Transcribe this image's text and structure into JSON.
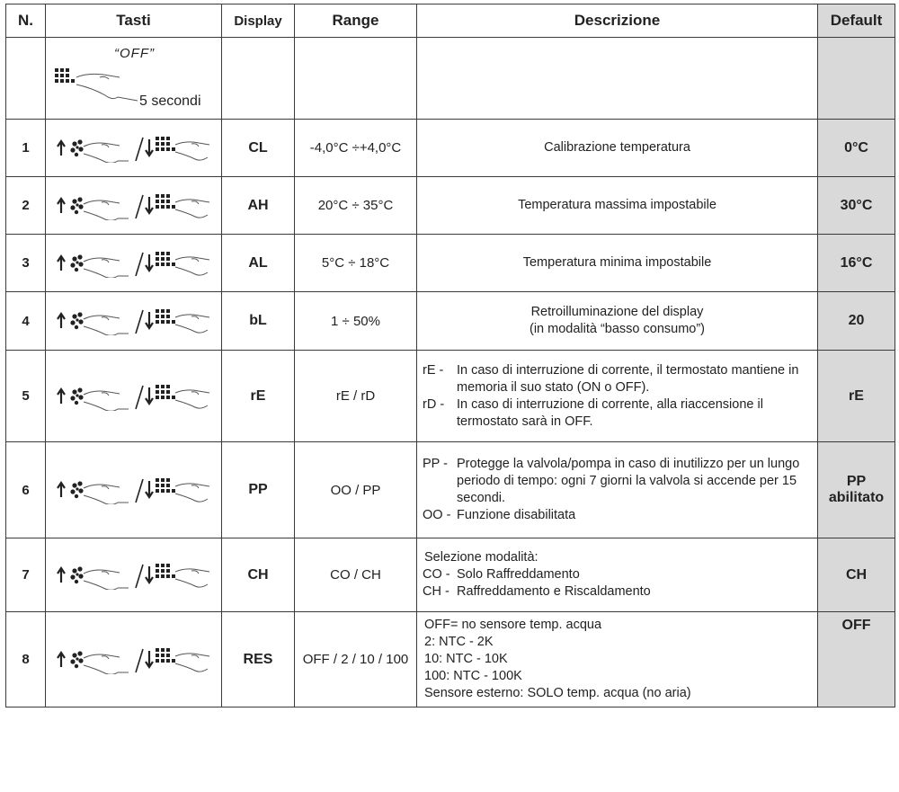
{
  "columns": [
    "N.",
    "Tasti",
    "Display",
    "Range",
    "Descrizione",
    "Default"
  ],
  "row0": {
    "label": "“OFF”",
    "time": "5 secondi"
  },
  "keys_icon": "up-arrow-fan-finger / down-arrow-grid-finger",
  "rows": [
    {
      "n": "1",
      "display": "CL",
      "range": "-4,0°C ÷+4,0°C",
      "desc": [
        "Calibrazione temperatura"
      ],
      "def": "0°C"
    },
    {
      "n": "2",
      "display": "AH",
      "range": "20°C ÷ 35°C",
      "desc": [
        "Temperatura massima impostabile"
      ],
      "def": "30°C"
    },
    {
      "n": "3",
      "display": "AL",
      "range": "5°C ÷ 18°C",
      "desc": [
        "Temperatura minima impostabile"
      ],
      "def": "16°C"
    },
    {
      "n": "4",
      "display": "bL",
      "range": "1 ÷ 50%",
      "desc": [
        "Retroilluminazione del display",
        "(in modalità “basso consumo”)"
      ],
      "def": "20"
    },
    {
      "n": "5",
      "display": "rE",
      "range": "rE / rD",
      "items": [
        {
          "k": "rE -",
          "v": "In caso di interruzione di corrente, il termostato mantiene in memoria il suo stato (ON o OFF)."
        },
        {
          "k": "rD -",
          "v": "In caso di interruzione di corrente, alla riaccensione il termostato sarà in OFF."
        }
      ],
      "def": "rE"
    },
    {
      "n": "6",
      "display": "PP",
      "range": "OO / PP",
      "items": [
        {
          "k": "PP -",
          "v": "Protegge la valvola/pompa in caso di inutilizzo per un lungo periodo di tempo: ogni 7 giorni la valvola si accende per 15 secondi."
        },
        {
          "k": "OO -",
          "v": "Funzione disabilitata"
        }
      ],
      "def": "PP abilitato"
    },
    {
      "n": "7",
      "display": "CH",
      "range": "CO / CH",
      "intro": "Selezione modalità:",
      "items": [
        {
          "k": "CO -",
          "v": "Solo Raffreddamento"
        },
        {
          "k": "CH -",
          "v": "Raffreddamento e Riscaldamento"
        }
      ],
      "def": "CH"
    },
    {
      "n": "8",
      "display": "RES",
      "range": "OFF / 2 / 10 / 100",
      "desc": [
        "OFF= no sensore temp. acqua",
        "2: NTC - 2K",
        "10: NTC - 10K",
        "100: NTC - 100K",
        "Sensore esterno: SOLO temp. acqua (no aria)"
      ],
      "def": "OFF"
    }
  ]
}
